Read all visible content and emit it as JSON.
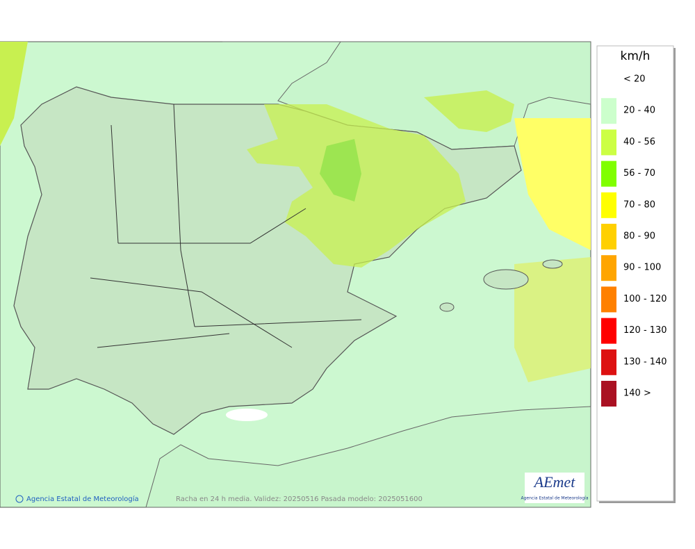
{
  "map": {
    "legend": {
      "unit": "km/h",
      "items": [
        {
          "label": "< 20",
          "color": "#ffffff"
        },
        {
          "label": "20 - 40",
          "color": "#ccffcc"
        },
        {
          "label": "40 - 56",
          "color": "#ccff44"
        },
        {
          "label": "56 - 70",
          "color": "#80ff00"
        },
        {
          "label": "70 - 80",
          "color": "#ffff00"
        },
        {
          "label": "80 - 90",
          "color": "#ffd000"
        },
        {
          "label": "90 - 100",
          "color": "#ffa500"
        },
        {
          "label": "100 - 120",
          "color": "#ff8000"
        },
        {
          "label": "120 - 130",
          "color": "#ff0000"
        },
        {
          "label": "130 - 140",
          "color": "#dd1111"
        },
        {
          "label": "140 >",
          "color": "#aa1122"
        }
      ]
    },
    "copyright": "Agencia Estatal de Meteorología",
    "caption": "Racha en 24 h media. Validez: 20250516 Pasada modelo: 2025051600",
    "logo": {
      "name": "AEmet",
      "subtitle": "Agencia Estatal de Meteorología"
    }
  }
}
